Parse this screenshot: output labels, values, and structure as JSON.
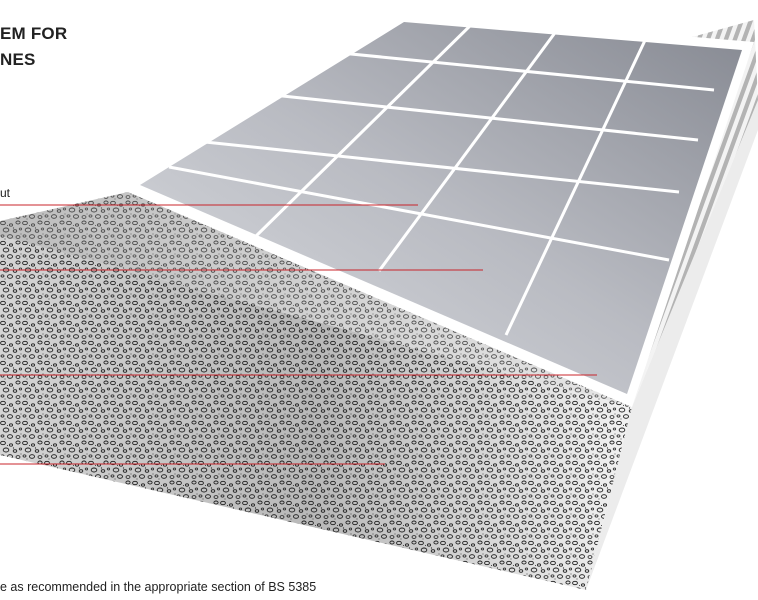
{
  "title": {
    "line1": "EM FOR",
    "line2": "NES"
  },
  "labels": {
    "grout": "ut"
  },
  "footnote": "e as recommended in the appropriate section of BS 5385",
  "colors": {
    "leader_line": "#c8242b",
    "tile_light": "#d6d8dd",
    "tile_dark": "#8a8d95",
    "grout": "#ffffff",
    "bed_dark": "#7a7a7a",
    "bed_light": "#ededed"
  }
}
